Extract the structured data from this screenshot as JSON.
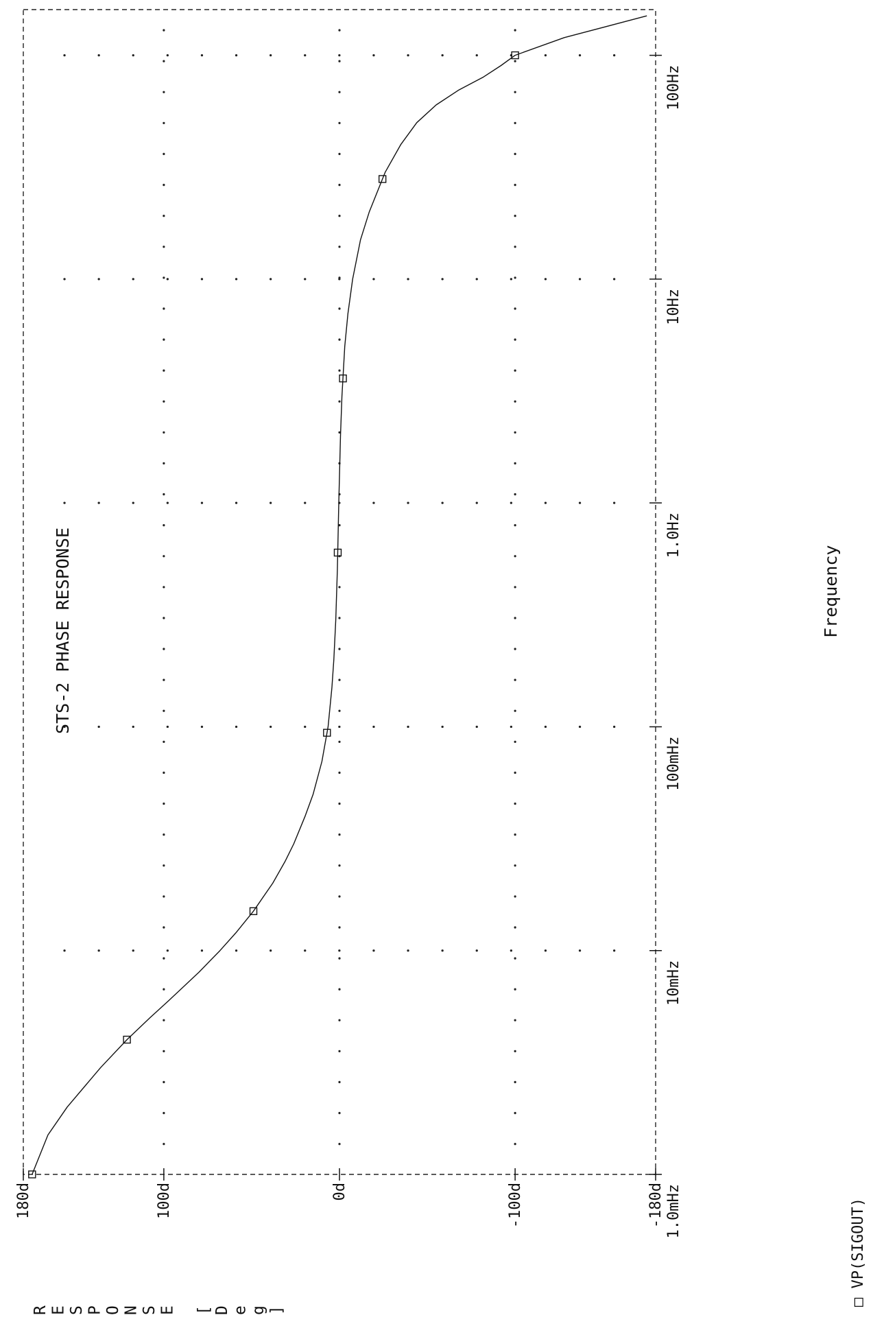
{
  "chart_data": {
    "type": "line",
    "title": "STS-2 PHASE RESPONSE",
    "xlabel": "Frequency",
    "ylabel_letters": [
      "R",
      "E",
      "S",
      "P",
      "O",
      "N",
      "S",
      "E",
      " ",
      "[",
      "D",
      "e",
      "g",
      "]"
    ],
    "x_scale": "log",
    "xlim": [
      0.001,
      160
    ],
    "ylim": [
      -180,
      180
    ],
    "x_ticks": [
      {
        "value": 0.001,
        "label": "1.0mHz"
      },
      {
        "value": 0.01,
        "label": "10mHz"
      },
      {
        "value": 0.1,
        "label": "100mHz"
      },
      {
        "value": 1,
        "label": "1.0Hz"
      },
      {
        "value": 10,
        "label": "10Hz"
      },
      {
        "value": 100,
        "label": "100Hz"
      }
    ],
    "y_ticks": [
      {
        "value": 180,
        "label": "180d"
      },
      {
        "value": 100,
        "label": "100d"
      },
      {
        "value": 0,
        "label": "0d"
      },
      {
        "value": -100,
        "label": "-100d"
      },
      {
        "value": -180,
        "label": "-180d"
      }
    ],
    "grid": "dotted",
    "legend": {
      "position": "bottom-left",
      "marker": "□",
      "label": "VP(SIGOUT)"
    },
    "series": [
      {
        "name": "VP(SIGOUT)",
        "x": [
          0.001,
          0.0015,
          0.002,
          0.003,
          0.004,
          0.005,
          0.006,
          0.008,
          0.01,
          0.012,
          0.015,
          0.02,
          0.025,
          0.03,
          0.04,
          0.05,
          0.07,
          0.1,
          0.15,
          0.2,
          0.3,
          0.5,
          1,
          2,
          3,
          5,
          7,
          10,
          15,
          20,
          30,
          40,
          50,
          60,
          70,
          80,
          90,
          100,
          120,
          150
        ],
        "y": [
          175,
          166,
          155,
          136,
          121,
          108,
          97,
          80,
          68,
          59,
          49,
          38,
          31,
          26,
          19.5,
          15,
          10,
          6.5,
          4.3,
          3.2,
          2.1,
          1.2,
          0.4,
          -0.6,
          -1.4,
          -3,
          -4.8,
          -7.5,
          -12,
          -17,
          -26,
          -35,
          -44,
          -55,
          -68,
          -82,
          -92,
          -100,
          -128,
          -175
        ]
      }
    ],
    "marker_x": [
      0.001,
      0.004,
      0.015,
      0.094,
      0.6,
      3.6,
      28,
      100
    ]
  }
}
